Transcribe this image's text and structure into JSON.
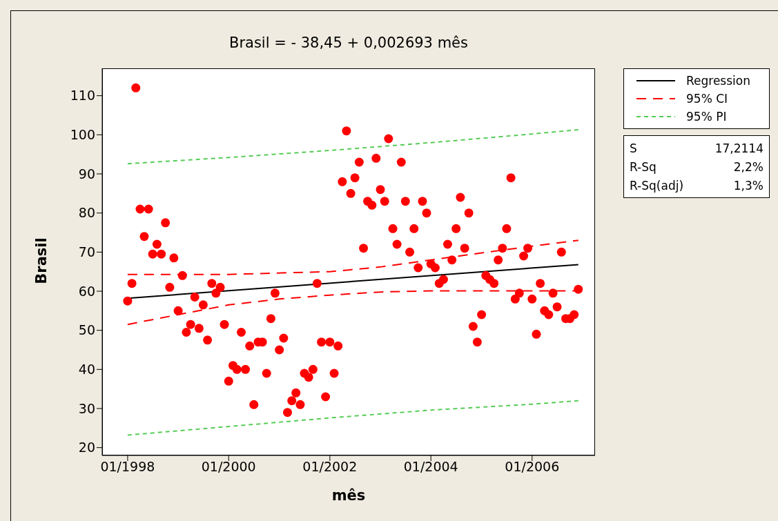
{
  "chart_data": {
    "type": "scatter",
    "title": "Brasil =  - 38,45 + 0,002693 mês",
    "xlabel": "mês",
    "ylabel": "Brasil",
    "xlim": [
      "1997-07",
      "2007-04"
    ],
    "xticks": [
      {
        "value": "1998-01",
        "label": "01/1998"
      },
      {
        "value": "2000-01",
        "label": "01/2000"
      },
      {
        "value": "2002-01",
        "label": "01/2002"
      },
      {
        "value": "2004-01",
        "label": "01/2004"
      },
      {
        "value": "2006-01",
        "label": "01/2006"
      }
    ],
    "ylim": [
      18,
      117
    ],
    "yticks": [
      20,
      30,
      40,
      50,
      60,
      70,
      80,
      90,
      100,
      110
    ],
    "grid": false,
    "legend": "top right",
    "annotations": [
      "S 17,2114",
      "R-Sq 2,2%",
      "R-Sq(adj) 1,3%"
    ],
    "series": [
      {
        "marker": "circle",
        "color": "#ff0000",
        "x": [
          "1998-01",
          "1998-02",
          "1998-03",
          "1998-04",
          "1998-05",
          "1998-06",
          "1998-07",
          "1998-08",
          "1998-09",
          "1998-10",
          "1998-11",
          "1998-12",
          "1999-01",
          "1999-02",
          "1999-03",
          "1999-04",
          "1999-05",
          "1999-06",
          "1999-07",
          "1999-08",
          "1999-09",
          "1999-10",
          "1999-11",
          "1999-12",
          "2000-01",
          "2000-02",
          "2000-03",
          "2000-04",
          "2000-05",
          "2000-06",
          "2000-07",
          "2000-08",
          "2000-09",
          "2000-10",
          "2000-11",
          "2000-12",
          "2001-01",
          "2001-02",
          "2001-03",
          "2001-04",
          "2001-05",
          "2001-06",
          "2001-07",
          "2001-08",
          "2001-09",
          "2001-10",
          "2001-11",
          "2001-12",
          "2002-01",
          "2002-02",
          "2002-03",
          "2002-04",
          "2002-05",
          "2002-06",
          "2002-07",
          "2002-08",
          "2002-09",
          "2002-10",
          "2002-11",
          "2002-12",
          "2003-01",
          "2003-02",
          "2003-03",
          "2003-04",
          "2003-05",
          "2003-06",
          "2003-07",
          "2003-08",
          "2003-09",
          "2003-10",
          "2003-11",
          "2003-12",
          "2004-01",
          "2004-02",
          "2004-03",
          "2004-04",
          "2004-05",
          "2004-06",
          "2004-07",
          "2004-08",
          "2004-09",
          "2004-10",
          "2004-11",
          "2004-12",
          "2005-01",
          "2005-02",
          "2005-03",
          "2005-04",
          "2005-05",
          "2005-06",
          "2005-07",
          "2005-08",
          "2005-09",
          "2005-10",
          "2005-11",
          "2005-12",
          "2006-01",
          "2006-02",
          "2006-03",
          "2006-04",
          "2006-05",
          "2006-06",
          "2006-07",
          "2006-08",
          "2006-09",
          "2006-10",
          "2006-11",
          "2006-12"
        ],
        "values": [
          57.5,
          62,
          112,
          81,
          74,
          81,
          69.5,
          72,
          69.5,
          77.5,
          61,
          68.5,
          55,
          64,
          49.5,
          51.5,
          58.5,
          50.5,
          56.5,
          47.5,
          62,
          59.5,
          61,
          51.5,
          37,
          41,
          40,
          49.5,
          40,
          46,
          31,
          47,
          47,
          39,
          53,
          59.5,
          45,
          48,
          29,
          32,
          34,
          31,
          39,
          38,
          40,
          62,
          47,
          33,
          47,
          39,
          46,
          88,
          101,
          85,
          89,
          93,
          71,
          83,
          82,
          94,
          86,
          83,
          99,
          76,
          72,
          93,
          83,
          70,
          76,
          66,
          83,
          80,
          67,
          66,
          62,
          63,
          72,
          68,
          76,
          84,
          71,
          80,
          51,
          47,
          54,
          64,
          63,
          62,
          68,
          71,
          76,
          89,
          58,
          59.5,
          69,
          71,
          58,
          49,
          62,
          55,
          54,
          59.5,
          56,
          70,
          53,
          53,
          54,
          60.5
        ]
      },
      {
        "type": "line",
        "name": "Regression",
        "marker": "none",
        "color": "#000000",
        "line_style": "solid",
        "x": [
          "1998-01",
          "2006-12"
        ],
        "values": [
          58.2,
          66.8
        ]
      },
      {
        "type": "line",
        "name": "95% CI",
        "marker": "none",
        "color": "#ff0000",
        "line_style": "dashed",
        "x": [
          "1998-01",
          "2000-01",
          "2002-01",
          "2003-01",
          "2004-01",
          "2005-01",
          "2006-01",
          "2006-12"
        ],
        "values": [
          64.3,
          64.3,
          65,
          66.2,
          68,
          69.8,
          71.5,
          73
        ]
      },
      {
        "type": "line",
        "marker": "none",
        "color": "#ff0000",
        "line_style": "dashed",
        "x": [
          "1998-01",
          "1999-01",
          "2000-01",
          "2001-01",
          "2002-01",
          "2003-01",
          "2004-01",
          "2005-01",
          "2006-12"
        ],
        "values": [
          51.5,
          54,
          56.5,
          58,
          59,
          59.8,
          60.1,
          60.1,
          60.1
        ]
      },
      {
        "type": "line",
        "name": "95% PI",
        "marker": "none",
        "color": "#55cc55",
        "line_style": "dotted",
        "x": [
          "1998-01",
          "2000-01",
          "2002-01",
          "2004-01",
          "2006-01",
          "2006-12"
        ],
        "values": [
          92.6,
          94.2,
          96,
          98,
          100.2,
          101.3
        ]
      },
      {
        "type": "line",
        "marker": "none",
        "color": "#55cc55",
        "line_style": "dotted",
        "x": [
          "1998-01",
          "2000-01",
          "2002-01",
          "2004-01",
          "2006-01",
          "2006-12"
        ],
        "values": [
          23.2,
          25.4,
          27.6,
          29.6,
          31.1,
          32
        ]
      }
    ]
  }
}
